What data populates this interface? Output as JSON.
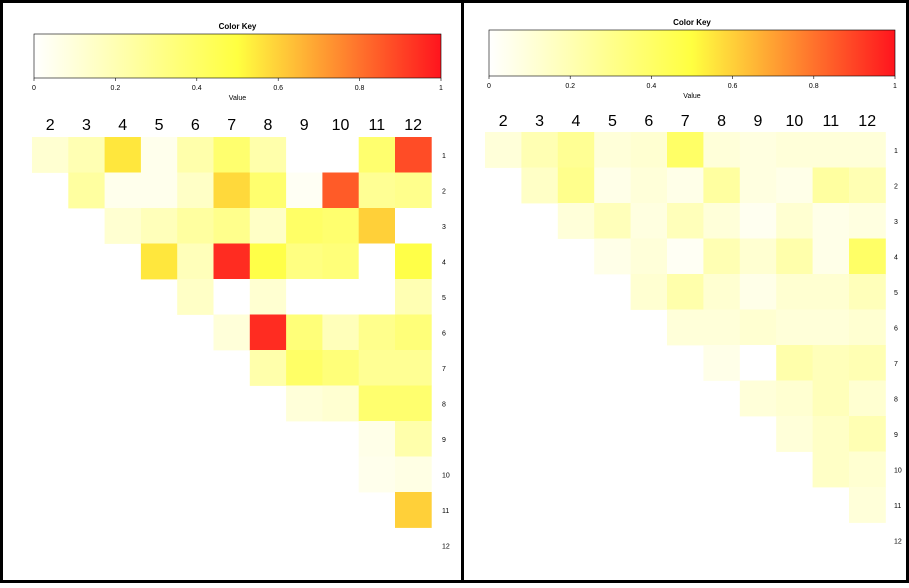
{
  "chart_data": [
    {
      "type": "heatmap",
      "title": "Color Key",
      "key_xlabel": "Value",
      "key_ticks": [
        "0",
        "0.2",
        "0.4",
        "0.6",
        "0.8",
        "1"
      ],
      "key_range": [
        0,
        1
      ],
      "columns": [
        "2",
        "3",
        "4",
        "5",
        "6",
        "7",
        "8",
        "9",
        "10",
        "11",
        "12"
      ],
      "rows": [
        "1",
        "2",
        "3",
        "4",
        "5",
        "6",
        "7",
        "8",
        "9",
        "10",
        "11",
        "12"
      ],
      "values": [
        [
          0.12,
          0.2,
          0.55,
          0.05,
          0.22,
          0.38,
          0.22,
          0,
          0,
          0.38,
          0.88
        ],
        [
          null,
          0.25,
          0.05,
          0.05,
          0.15,
          0.58,
          0.38,
          0.03,
          0.85,
          0.28,
          0.3
        ],
        [
          null,
          null,
          0.12,
          0.18,
          0.25,
          0.3,
          0.15,
          0.4,
          0.38,
          0.6,
          0
        ],
        [
          null,
          null,
          null,
          0.55,
          0.18,
          0.95,
          0.48,
          0.33,
          0.35,
          0,
          0.48
        ],
        [
          null,
          null,
          null,
          null,
          0.15,
          0,
          0.12,
          0,
          0,
          0,
          0.2
        ],
        [
          null,
          null,
          null,
          null,
          null,
          0.1,
          0.95,
          0.35,
          0.18,
          0.3,
          0.35
        ],
        [
          null,
          null,
          null,
          null,
          null,
          null,
          0.22,
          0.4,
          0.35,
          0.28,
          0.28
        ],
        [
          null,
          null,
          null,
          null,
          null,
          null,
          null,
          0.1,
          0.12,
          0.38,
          0.38
        ],
        [
          null,
          null,
          null,
          null,
          null,
          null,
          null,
          null,
          null,
          0.06,
          0.22
        ],
        [
          null,
          null,
          null,
          null,
          null,
          null,
          null,
          null,
          null,
          0.05,
          0.07
        ],
        [
          null,
          null,
          null,
          null,
          null,
          null,
          null,
          null,
          null,
          null,
          0.6
        ],
        [
          null,
          null,
          null,
          null,
          null,
          null,
          null,
          null,
          null,
          null,
          null
        ]
      ]
    },
    {
      "type": "heatmap",
      "title": "Color Key",
      "key_xlabel": "Value",
      "key_ticks": [
        "0",
        "0.2",
        "0.4",
        "0.6",
        "0.8",
        "1"
      ],
      "key_range": [
        0,
        1
      ],
      "columns": [
        "2",
        "3",
        "4",
        "5",
        "6",
        "7",
        "8",
        "9",
        "10",
        "11",
        "12"
      ],
      "rows": [
        "1",
        "2",
        "3",
        "4",
        "5",
        "6",
        "7",
        "8",
        "9",
        "10",
        "11",
        "12"
      ],
      "values": [
        [
          0.1,
          0.2,
          0.28,
          0.1,
          0.12,
          0.4,
          0.1,
          0.08,
          0.1,
          0.1,
          0.1
        ],
        [
          null,
          0.15,
          0.3,
          0.06,
          0.1,
          0.06,
          0.25,
          0.08,
          0.06,
          0.25,
          0.2
        ],
        [
          null,
          null,
          0.1,
          0.18,
          0.08,
          0.18,
          0.1,
          0.04,
          0.12,
          0.06,
          0.08
        ],
        [
          null,
          null,
          null,
          0.06,
          0.1,
          0.03,
          0.2,
          0.12,
          0.22,
          0.06,
          0.4
        ],
        [
          null,
          null,
          null,
          null,
          0.12,
          0.22,
          0.12,
          0.06,
          0.12,
          0.12,
          0.18
        ],
        [
          null,
          null,
          null,
          null,
          null,
          0.1,
          0.1,
          0.12,
          0.1,
          0.1,
          0.12
        ],
        [
          null,
          null,
          null,
          null,
          null,
          null,
          0.06,
          0,
          0.22,
          0.18,
          0.2
        ],
        [
          null,
          null,
          null,
          null,
          null,
          null,
          null,
          0.1,
          0.12,
          0.18,
          0.12
        ],
        [
          null,
          null,
          null,
          null,
          null,
          null,
          null,
          null,
          0.1,
          0.15,
          0.2
        ],
        [
          null,
          null,
          null,
          null,
          null,
          null,
          null,
          null,
          null,
          0.15,
          0.12
        ],
        [
          null,
          null,
          null,
          null,
          null,
          null,
          null,
          null,
          null,
          null,
          0.1
        ],
        [
          null,
          null,
          null,
          null,
          null,
          null,
          null,
          null,
          null,
          null,
          null
        ]
      ]
    }
  ]
}
